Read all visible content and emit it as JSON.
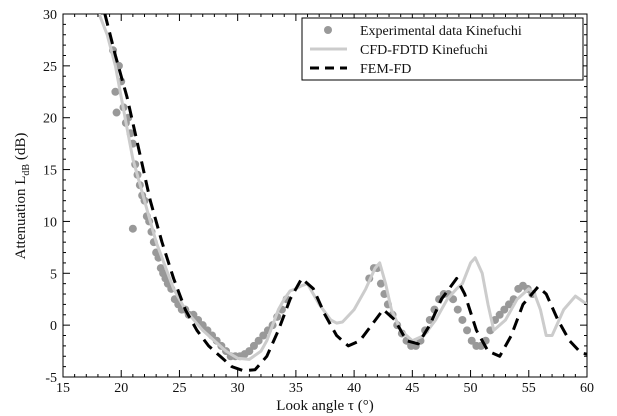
{
  "chart_data": {
    "type": "line",
    "xlabel": "Look angle τ (°)",
    "ylabel": {
      "main": "Attenuation L",
      "sub": "dB",
      "unit": " (dB)"
    },
    "xlim": [
      15,
      60
    ],
    "ylim": [
      -5,
      30
    ],
    "xticks": [
      15,
      20,
      25,
      30,
      35,
      40,
      45,
      50,
      55,
      60
    ],
    "yticks": [
      -5,
      0,
      5,
      10,
      15,
      20,
      25,
      30
    ],
    "grid": false,
    "legend_position": "top-right",
    "series": [
      {
        "name": "Experimental data Kinefuchi",
        "kind": "scatter",
        "color": "#999999",
        "points": [
          [
            19.3,
            26.5
          ],
          [
            19.5,
            22.5
          ],
          [
            19.6,
            20.5
          ],
          [
            19.8,
            25.0
          ],
          [
            20.0,
            23.5
          ],
          [
            20.2,
            21.0
          ],
          [
            20.4,
            19.5
          ],
          [
            20.6,
            20.0
          ],
          [
            20.8,
            18.5
          ],
          [
            21.0,
            17.5
          ],
          [
            21.2,
            15.5
          ],
          [
            21.0,
            9.3
          ],
          [
            21.4,
            14.5
          ],
          [
            21.6,
            13.5
          ],
          [
            21.8,
            12.5
          ],
          [
            22.0,
            12.0
          ],
          [
            22.2,
            10.5
          ],
          [
            22.4,
            10.0
          ],
          [
            22.6,
            9.0
          ],
          [
            22.8,
            8.0
          ],
          [
            23.0,
            7.0
          ],
          [
            23.2,
            6.5
          ],
          [
            23.4,
            5.5
          ],
          [
            23.6,
            5.0
          ],
          [
            23.8,
            4.5
          ],
          [
            24.0,
            4.0
          ],
          [
            24.3,
            3.5
          ],
          [
            24.6,
            2.5
          ],
          [
            24.9,
            2.0
          ],
          [
            25.2,
            1.5
          ],
          [
            25.5,
            1.5
          ],
          [
            25.8,
            1.0
          ],
          [
            26.2,
            1.0
          ],
          [
            26.6,
            0.5
          ],
          [
            27.0,
            0.0
          ],
          [
            27.4,
            -0.5
          ],
          [
            27.8,
            -1.0
          ],
          [
            28.2,
            -1.5
          ],
          [
            28.6,
            -2.0
          ],
          [
            29.0,
            -2.5
          ],
          [
            29.4,
            -3.0
          ],
          [
            29.8,
            -3.0
          ],
          [
            30.2,
            -3.0
          ],
          [
            30.6,
            -2.8
          ],
          [
            31.0,
            -2.5
          ],
          [
            31.4,
            -2.0
          ],
          [
            31.8,
            -1.5
          ],
          [
            32.2,
            -1.0
          ],
          [
            32.6,
            -0.5
          ],
          [
            33.0,
            0.0
          ],
          [
            33.4,
            0.8
          ],
          [
            33.8,
            1.5
          ],
          [
            34.2,
            2.5
          ],
          [
            41.3,
            4.5
          ],
          [
            41.7,
            5.5
          ],
          [
            42.0,
            5.5
          ],
          [
            42.3,
            4.0
          ],
          [
            42.6,
            3.0
          ],
          [
            42.9,
            2.0
          ],
          [
            43.3,
            1.0
          ],
          [
            43.7,
            0.0
          ],
          [
            44.1,
            -0.8
          ],
          [
            44.5,
            -1.5
          ],
          [
            44.9,
            -2.0
          ],
          [
            45.3,
            -2.0
          ],
          [
            45.7,
            -1.5
          ],
          [
            46.1,
            -0.5
          ],
          [
            46.5,
            0.5
          ],
          [
            46.9,
            1.5
          ],
          [
            47.3,
            2.5
          ],
          [
            47.7,
            3.0
          ],
          [
            48.1,
            3.0
          ],
          [
            48.5,
            2.5
          ],
          [
            48.9,
            1.5
          ],
          [
            49.3,
            0.5
          ],
          [
            49.7,
            -0.5
          ],
          [
            50.1,
            -1.5
          ],
          [
            50.5,
            -2.0
          ],
          [
            50.9,
            -2.0
          ],
          [
            51.3,
            -1.5
          ],
          [
            51.7,
            -0.5
          ],
          [
            52.1,
            0.5
          ],
          [
            52.5,
            1.0
          ],
          [
            52.9,
            1.5
          ],
          [
            53.3,
            2.0
          ],
          [
            53.7,
            2.5
          ],
          [
            54.1,
            3.5
          ],
          [
            54.5,
            3.8
          ],
          [
            54.9,
            3.5
          ],
          [
            55.3,
            3.0
          ]
        ]
      },
      {
        "name": "CFD-FDTD Kinefuchi",
        "kind": "line",
        "color": "#cccccc",
        "points": [
          [
            18.1,
            30.0
          ],
          [
            18.8,
            28.0
          ],
          [
            19.5,
            25.0
          ],
          [
            20.0,
            22.0
          ],
          [
            20.5,
            19.0
          ],
          [
            21.0,
            16.0
          ],
          [
            21.5,
            14.0
          ],
          [
            22.0,
            12.0
          ],
          [
            22.5,
            10.0
          ],
          [
            23.0,
            8.0
          ],
          [
            23.5,
            6.5
          ],
          [
            24.0,
            5.0
          ],
          [
            24.5,
            3.5
          ],
          [
            25.0,
            2.5
          ],
          [
            25.5,
            1.5
          ],
          [
            26.0,
            0.8
          ],
          [
            27.0,
            -0.5
          ],
          [
            28.0,
            -1.5
          ],
          [
            29.0,
            -2.5
          ],
          [
            30.0,
            -3.2
          ],
          [
            31.0,
            -3.3
          ],
          [
            32.0,
            -2.5
          ],
          [
            32.5,
            -1.5
          ],
          [
            33.0,
            0.0
          ],
          [
            33.5,
            1.5
          ],
          [
            34.0,
            2.5
          ],
          [
            34.5,
            3.3
          ],
          [
            35.0,
            3.5
          ],
          [
            35.5,
            3.8
          ],
          [
            36.0,
            4.0
          ],
          [
            37.0,
            2.0
          ],
          [
            38.0,
            0.5
          ],
          [
            38.5,
            0.2
          ],
          [
            39.0,
            0.3
          ],
          [
            40.0,
            1.5
          ],
          [
            41.0,
            3.5
          ],
          [
            41.8,
            5.5
          ],
          [
            42.2,
            6.0
          ],
          [
            42.7,
            4.0
          ],
          [
            43.2,
            1.5
          ],
          [
            44.0,
            -0.5
          ],
          [
            45.0,
            -1.5
          ],
          [
            46.0,
            -1.0
          ],
          [
            47.0,
            0.5
          ],
          [
            48.0,
            2.5
          ],
          [
            48.8,
            3.5
          ],
          [
            49.3,
            4.0
          ],
          [
            50.0,
            6.0
          ],
          [
            50.4,
            6.5
          ],
          [
            51.0,
            5.0
          ],
          [
            51.5,
            2.0
          ],
          [
            52.0,
            -0.5
          ],
          [
            53.0,
            0.5
          ],
          [
            54.0,
            2.5
          ],
          [
            55.0,
            3.5
          ],
          [
            55.5,
            3.0
          ],
          [
            56.0,
            1.5
          ],
          [
            56.5,
            -1.0
          ],
          [
            57.0,
            -1.0
          ],
          [
            58.0,
            1.5
          ],
          [
            59.0,
            2.8
          ],
          [
            60.0,
            2.0
          ]
        ]
      },
      {
        "name": "FEM-FD",
        "kind": "line",
        "dashed": true,
        "color": "#000000",
        "points": [
          [
            18.6,
            30.0
          ],
          [
            19.5,
            26.0
          ],
          [
            20.5,
            22.0
          ],
          [
            21.5,
            17.0
          ],
          [
            22.5,
            12.0
          ],
          [
            23.5,
            8.0
          ],
          [
            24.5,
            4.5
          ],
          [
            25.5,
            1.5
          ],
          [
            26.5,
            -0.5
          ],
          [
            27.5,
            -2.0
          ],
          [
            28.5,
            -3.0
          ],
          [
            29.5,
            -4.0
          ],
          [
            30.5,
            -4.4
          ],
          [
            31.5,
            -4.3
          ],
          [
            32.5,
            -3.0
          ],
          [
            33.5,
            -0.5
          ],
          [
            34.5,
            2.5
          ],
          [
            35.5,
            4.5
          ],
          [
            36.5,
            3.5
          ],
          [
            37.5,
            1.0
          ],
          [
            38.5,
            -1.0
          ],
          [
            39.5,
            -2.0
          ],
          [
            40.5,
            -1.5
          ],
          [
            41.5,
            0.0
          ],
          [
            42.5,
            1.5
          ],
          [
            43.5,
            0.5
          ],
          [
            44.5,
            -1.5
          ],
          [
            45.5,
            -1.8
          ],
          [
            46.5,
            0.0
          ],
          [
            47.5,
            2.5
          ],
          [
            48.8,
            4.5
          ],
          [
            49.5,
            3.0
          ],
          [
            50.5,
            -0.5
          ],
          [
            51.5,
            -2.5
          ],
          [
            52.5,
            -3.0
          ],
          [
            53.5,
            -1.0
          ],
          [
            54.5,
            2.0
          ],
          [
            55.8,
            3.7
          ],
          [
            56.5,
            3.0
          ],
          [
            57.5,
            0.5
          ],
          [
            58.5,
            -1.5
          ],
          [
            59.5,
            -2.7
          ],
          [
            60.0,
            -2.8
          ]
        ]
      }
    ]
  }
}
